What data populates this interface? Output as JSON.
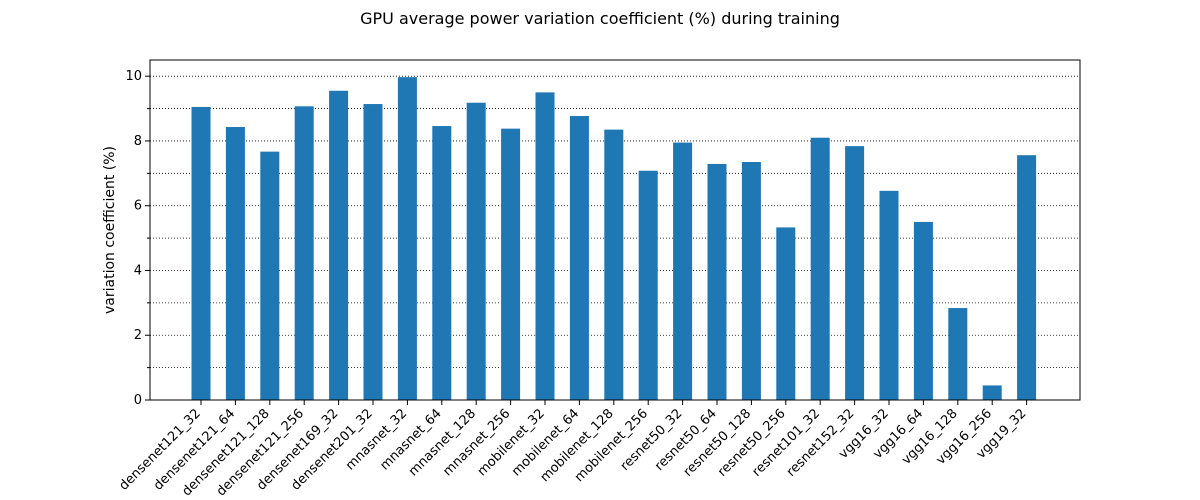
{
  "chart_data": {
    "type": "bar",
    "title": "GPU average power variation coefficient (%) during training",
    "xlabel": "",
    "ylabel": "variation coefficient (%)",
    "ylim": [
      0,
      10.5
    ],
    "yticks": [
      0,
      2,
      4,
      6,
      8,
      10
    ],
    "grid": "horizontal dotted",
    "bar_color": "#1f77b4",
    "categories": [
      "densenet121_32",
      "densenet121_64",
      "densenet121_128",
      "densenet121_256",
      "densenet169_32",
      "densenet201_32",
      "mnasnet_32",
      "mnasnet_64",
      "mnasnet_128",
      "mnasnet_256",
      "mobilenet_32",
      "mobilenet_64",
      "mobilenet_128",
      "mobilenet_256",
      "resnet50_32",
      "resnet50_64",
      "resnet50_128",
      "resnet50_256",
      "resnet101_32",
      "resnet152_32",
      "vgg16_32",
      "vgg16_64",
      "vgg16_128",
      "vgg16_256",
      "vgg19_32"
    ],
    "values": [
      9.05,
      8.43,
      7.67,
      9.07,
      9.55,
      9.14,
      9.97,
      8.46,
      9.18,
      8.38,
      9.5,
      8.77,
      8.35,
      7.08,
      7.95,
      7.29,
      7.35,
      5.33,
      8.1,
      7.84,
      6.46,
      5.5,
      2.84,
      0.45,
      7.56
    ]
  }
}
